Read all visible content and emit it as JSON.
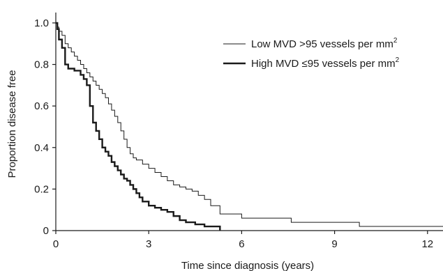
{
  "chart_data": {
    "type": "line",
    "step": true,
    "xlabel": "Time since diagnosis (years)",
    "ylabel": "Proportion disease free",
    "xlim": [
      0,
      12.5
    ],
    "ylim": [
      0,
      1.05
    ],
    "xticks": [
      0,
      3,
      6,
      9,
      12
    ],
    "yticks": [
      0,
      0.2,
      0.4,
      0.6,
      0.8,
      1.0
    ],
    "ytick_labels": [
      "0",
      "0.2",
      "0.4",
      "0.6",
      "0.8",
      "1.0"
    ],
    "grid": false,
    "legend_position": "top-right",
    "series": [
      {
        "key": "low",
        "name": "Low MVD >95 vessels per mm",
        "name_sup": "2",
        "line": "thin",
        "x": [
          0,
          0.05,
          0.1,
          0.2,
          0.3,
          0.4,
          0.5,
          0.6,
          0.7,
          0.8,
          0.9,
          1.0,
          1.1,
          1.2,
          1.3,
          1.4,
          1.5,
          1.6,
          1.7,
          1.8,
          1.9,
          2.0,
          2.1,
          2.2,
          2.3,
          2.4,
          2.5,
          2.6,
          2.8,
          3.0,
          3.2,
          3.4,
          3.6,
          3.8,
          4.0,
          4.2,
          4.4,
          4.6,
          4.8,
          5.0,
          5.3,
          6.0,
          7.6,
          9.8,
          12.5
        ],
        "y": [
          1.0,
          0.98,
          0.96,
          0.94,
          0.9,
          0.88,
          0.86,
          0.84,
          0.82,
          0.8,
          0.78,
          0.76,
          0.74,
          0.72,
          0.7,
          0.68,
          0.66,
          0.64,
          0.61,
          0.58,
          0.55,
          0.52,
          0.48,
          0.44,
          0.4,
          0.37,
          0.35,
          0.34,
          0.32,
          0.3,
          0.28,
          0.26,
          0.24,
          0.22,
          0.21,
          0.2,
          0.19,
          0.17,
          0.15,
          0.12,
          0.08,
          0.06,
          0.04,
          0.02,
          0.02
        ]
      },
      {
        "key": "high",
        "name": "High MVD ≤95 vessels per mm",
        "name_sup": "2",
        "line": "thick",
        "x": [
          0,
          0.05,
          0.1,
          0.2,
          0.3,
          0.4,
          0.6,
          0.8,
          0.9,
          1.0,
          1.1,
          1.2,
          1.3,
          1.4,
          1.5,
          1.6,
          1.7,
          1.8,
          1.9,
          2.0,
          2.1,
          2.2,
          2.3,
          2.4,
          2.5,
          2.6,
          2.7,
          2.8,
          3.0,
          3.2,
          3.4,
          3.6,
          3.8,
          4.0,
          4.2,
          4.5,
          4.8,
          5.3
        ],
        "y": [
          1.0,
          0.97,
          0.92,
          0.88,
          0.8,
          0.78,
          0.77,
          0.75,
          0.73,
          0.7,
          0.6,
          0.52,
          0.48,
          0.44,
          0.4,
          0.38,
          0.36,
          0.33,
          0.31,
          0.29,
          0.27,
          0.25,
          0.24,
          0.22,
          0.2,
          0.18,
          0.16,
          0.14,
          0.12,
          0.11,
          0.1,
          0.09,
          0.07,
          0.05,
          0.04,
          0.03,
          0.02,
          0.0
        ]
      }
    ]
  }
}
